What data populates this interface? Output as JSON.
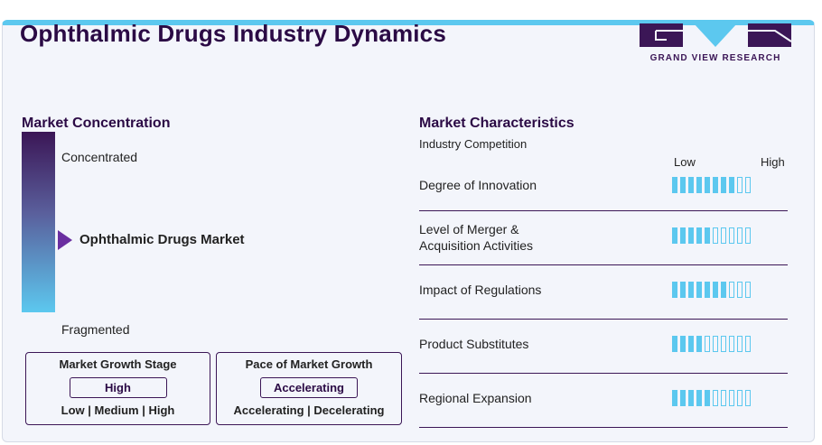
{
  "title": "Ophthalmic Drugs Industry Dynamics",
  "logo": {
    "text": "GRAND VIEW RESEARCH",
    "colors": {
      "dark": "#3b1656",
      "accent": "#5cc8ef"
    }
  },
  "market_concentration": {
    "heading": "Market Concentration",
    "top_label": "Concentrated",
    "bottom_label": "Fragmented",
    "market_label": "Ophthalmic Drugs Market",
    "marker_position": 0.6
  },
  "growth_stage": {
    "title": "Market Growth Stage",
    "value": "High",
    "options": "Low | Medium | High"
  },
  "growth_pace": {
    "title": "Pace of Market Growth",
    "value": "Accelerating",
    "options": "Accelerating | Decelerating"
  },
  "characteristics": {
    "heading": "Market Characteristics",
    "subheading": "Industry Competition",
    "scale_low": "Low",
    "scale_high": "High",
    "total_segments": 10,
    "items": [
      {
        "label": "Degree of Innovation",
        "level": 8
      },
      {
        "label": "Level of Merger & Acquisition Activities",
        "level": 5
      },
      {
        "label": "Impact of Regulations",
        "level": 7
      },
      {
        "label": "Product Substitutes",
        "level": 4
      },
      {
        "label": "Regional Expansion",
        "level": 5
      }
    ]
  }
}
